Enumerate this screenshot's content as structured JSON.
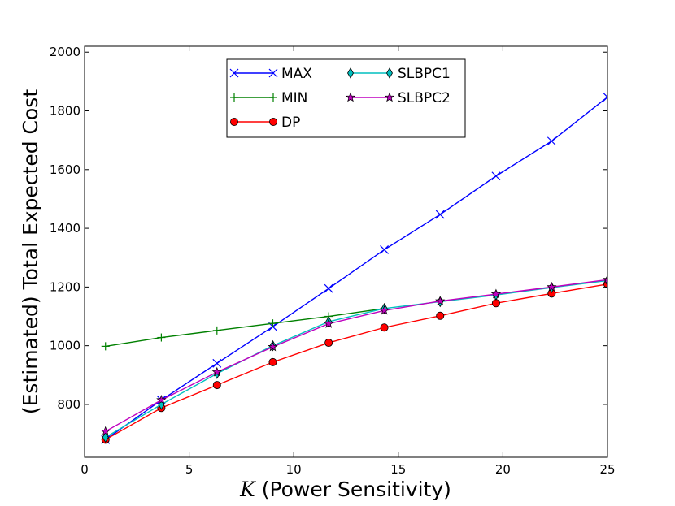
{
  "chart_data": {
    "type": "line",
    "title": "",
    "xlabel_var": "K",
    "xlabel_rest": " (Power Sensitivity)",
    "ylabel": "(Estimated) Total Expected Cost",
    "xlim": [
      0,
      25
    ],
    "ylim": [
      620,
      2020
    ],
    "xticks": [
      0,
      5,
      10,
      15,
      20,
      25
    ],
    "yticks": [
      800,
      1000,
      1200,
      1400,
      1600,
      1800,
      2000
    ],
    "legend_position": "top-center",
    "x": [
      1,
      3.67,
      6.33,
      9,
      11.67,
      14.33,
      17,
      19.67,
      22.33,
      25
    ],
    "series": [
      {
        "name": "MAX",
        "color": "#0000ff",
        "marker": "x",
        "values": [
          680,
          815,
          940,
          1065,
          1195,
          1327,
          1447,
          1578,
          1697,
          1847
        ]
      },
      {
        "name": "MIN",
        "color": "#008000",
        "marker": "+",
        "values": [
          998,
          1028,
          1052,
          1076,
          1100,
          1127,
          null,
          null,
          null,
          null
        ]
      },
      {
        "name": "DP",
        "color": "#ff0000",
        "marker": "o",
        "values": [
          680,
          788,
          866,
          944,
          1010,
          1062,
          1102,
          1145,
          1178,
          1210
        ]
      },
      {
        "name": "SLBPC1",
        "color": "#00bfbf",
        "marker": "d",
        "values": [
          688,
          800,
          905,
          1000,
          1082,
          1127,
          1150,
          1173,
          1198,
          1222
        ]
      },
      {
        "name": "SLBPC2",
        "color": "#bf00bf",
        "marker": "*",
        "values": [
          708,
          815,
          910,
          996,
          1075,
          1120,
          1152,
          1176,
          1200,
          1225
        ]
      }
    ]
  }
}
